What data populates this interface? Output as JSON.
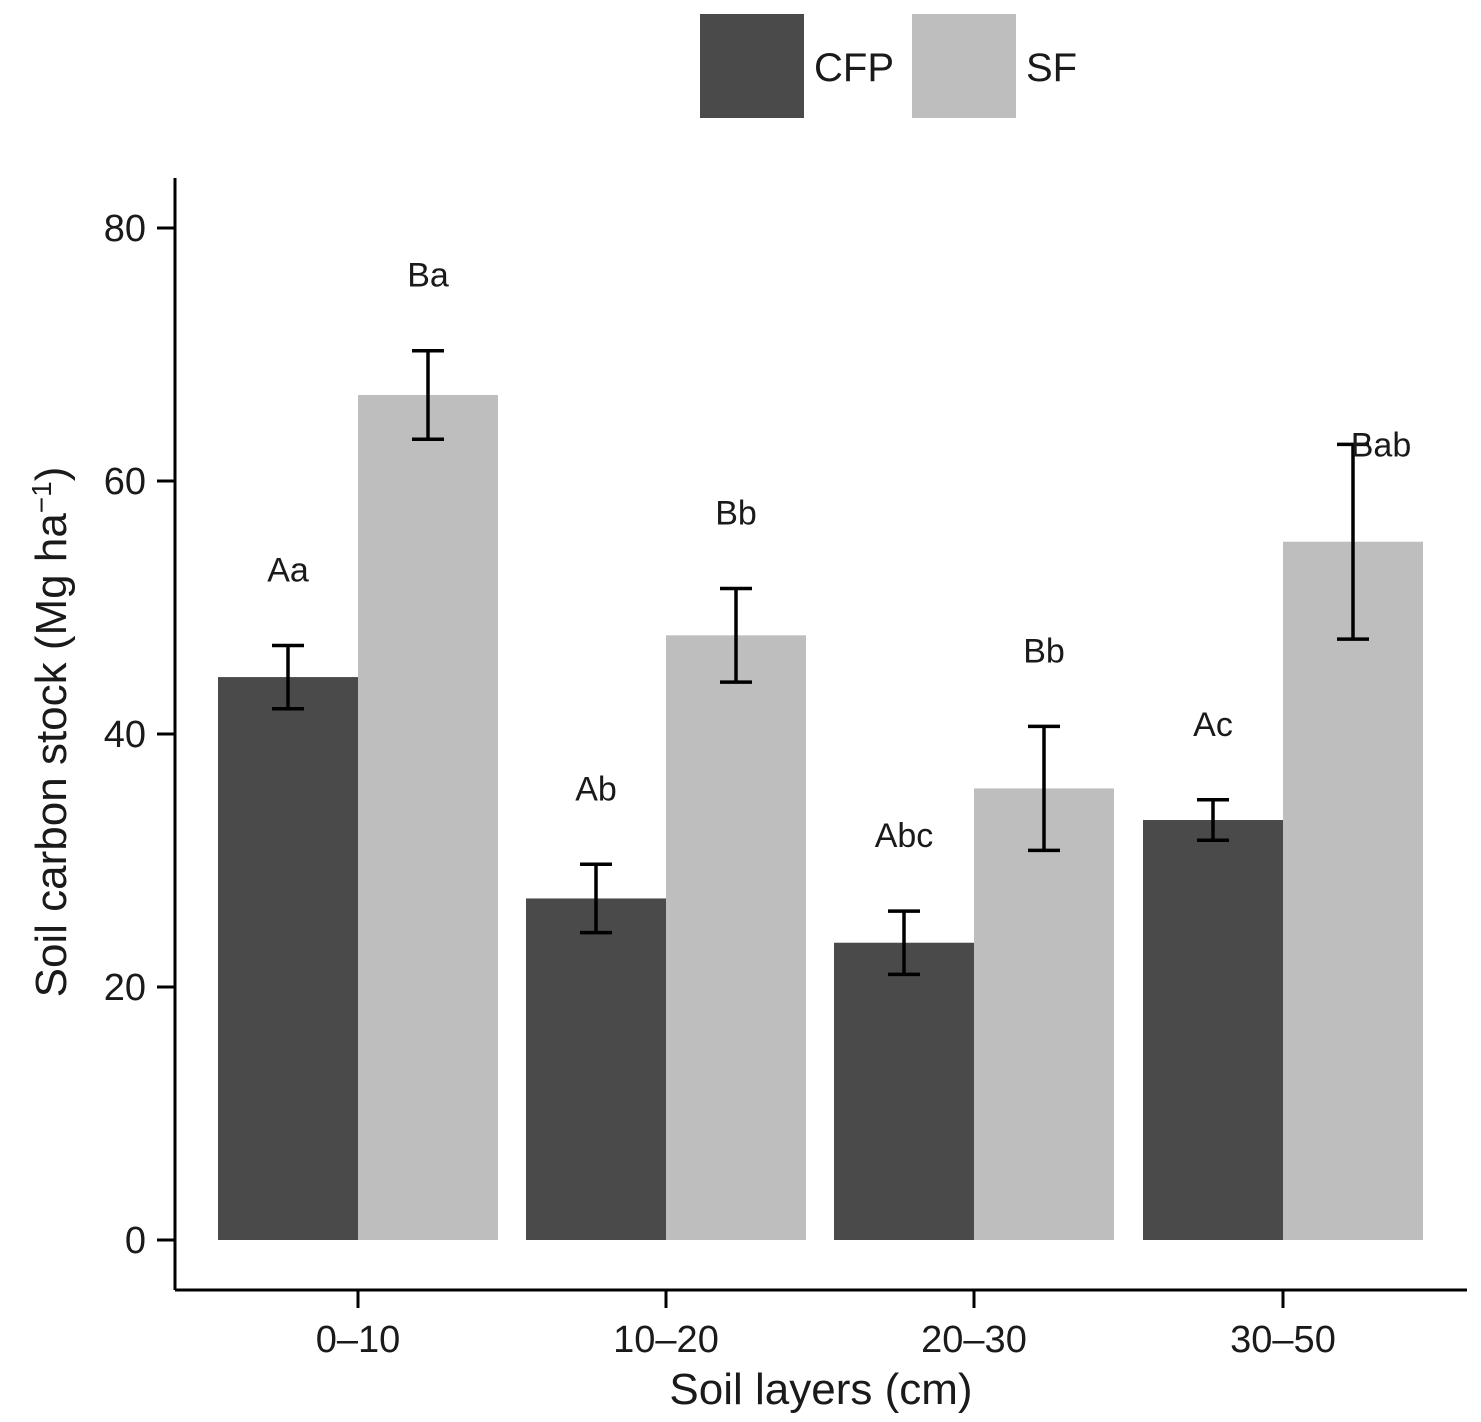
{
  "chart_data": {
    "type": "bar",
    "title": "",
    "xlabel": "Soil layers (cm)",
    "ylabel": "Soil carbon stock (Mg ha",
    "ylabel_superscript": "−1",
    "ylabel_close": ")",
    "ylim": [
      0,
      80
    ],
    "yticks": [
      "0",
      "20",
      "40",
      "60",
      "80"
    ],
    "categories": [
      "0–10",
      "10–20",
      "20–30",
      "30–50"
    ],
    "legend_position": "top",
    "series": [
      {
        "name": "CFP",
        "color": "#4a4a4a",
        "values": [
          44.5,
          27.0,
          23.5,
          33.2
        ],
        "error": [
          2.5,
          2.7,
          2.5,
          1.6
        ],
        "labels": [
          "Aa",
          "Ab",
          "Abc",
          "Ac"
        ]
      },
      {
        "name": "SF",
        "color": "#bebebe",
        "values": [
          66.8,
          47.8,
          35.7,
          55.2
        ],
        "error": [
          3.5,
          3.7,
          4.9,
          7.7
        ],
        "labels": [
          "Ba",
          "Bb",
          "Bb",
          "Bab"
        ]
      }
    ]
  }
}
